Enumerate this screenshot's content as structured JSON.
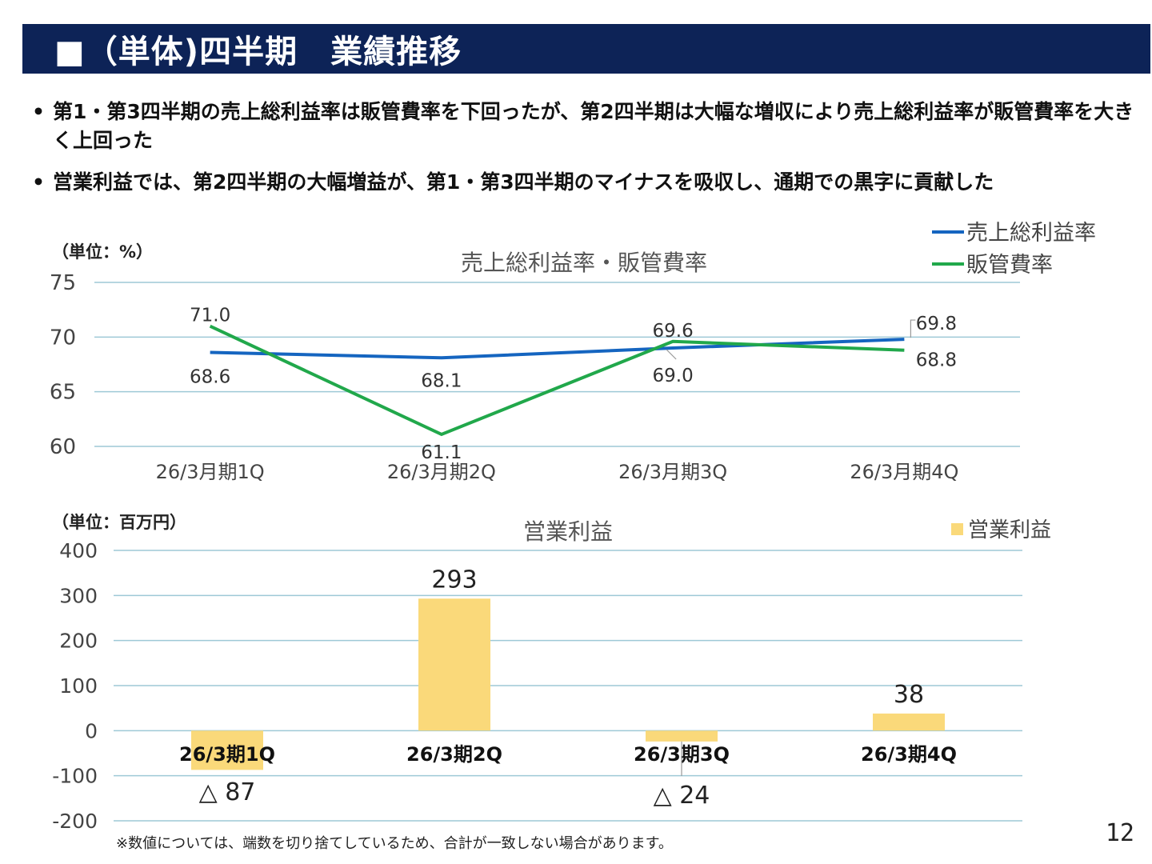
{
  "header": {
    "title": "■（単体)四半期　業績推移"
  },
  "bullets": [
    "第1・第3四半期の売上総利益率は販管費率を下回ったが、第2四半期は大幅な増収により売上総利益率が販管費率を大きく上回った",
    "営業利益では、第2四半期の大幅増益が、第1・第3四半期のマイナスを吸収し、通期での黒字に貢献した"
  ],
  "footnote": "※数値については、端数を切り捨てしているため、合計が一致しない場合があります。",
  "page_number": "12",
  "colors": {
    "header_bg": "#0d2357",
    "gross_margin": "#1565c0",
    "sga": "#21a84b",
    "operating_income": "#fad97a",
    "grid": "#9ec9d6"
  },
  "chart_data": [
    {
      "type": "line",
      "title": "売上総利益率・販管費率",
      "unit_label": "（単位：%）",
      "categories": [
        "26/3月期1Q",
        "26/3月期2Q",
        "26/3月期3Q",
        "26/3月期4Q"
      ],
      "ylim": [
        60,
        75
      ],
      "yticks": [
        60,
        65,
        70,
        75
      ],
      "legend_position": "top-right",
      "series": [
        {
          "name": "売上総利益率",
          "values": [
            68.6,
            68.1,
            69.0,
            69.8
          ],
          "labels": [
            "68.6",
            "68.1",
            "69.0",
            "69.8"
          ]
        },
        {
          "name": "販管費率",
          "values": [
            71.0,
            61.1,
            69.6,
            68.8
          ],
          "labels": [
            "71.0",
            "61.1",
            "69.6",
            "68.8"
          ]
        }
      ]
    },
    {
      "type": "bar",
      "title": "営業利益",
      "unit_label": "（単位：百万円）",
      "categories": [
        "26/3期1Q",
        "26/3期2Q",
        "26/3期3Q",
        "26/3期4Q"
      ],
      "ylim": [
        -200,
        400
      ],
      "yticks": [
        -200,
        -100,
        0,
        100,
        200,
        300,
        400
      ],
      "legend_position": "top-right",
      "series": [
        {
          "name": "営業利益",
          "values": [
            -87,
            293,
            -24,
            38
          ],
          "labels": [
            "△ 87",
            "293",
            "△ 24",
            "38"
          ]
        }
      ]
    }
  ]
}
